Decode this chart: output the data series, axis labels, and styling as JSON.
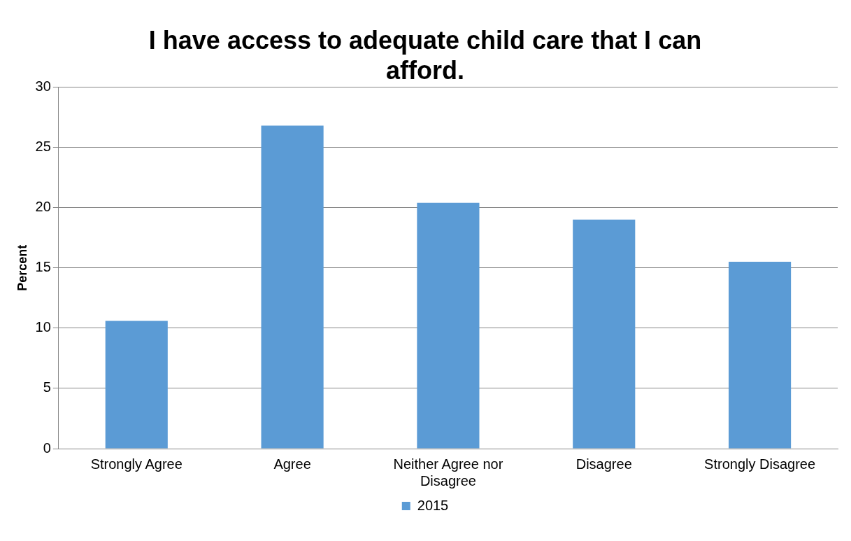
{
  "chart_data": {
    "type": "bar",
    "title": "I have access to adequate child care that I can afford.",
    "ylabel": "Percent",
    "categories": [
      "Strongly Agree",
      "Agree",
      "Neither Agree nor Disagree",
      "Disagree",
      "Strongly Disagree"
    ],
    "series": [
      {
        "name": "2015",
        "color": "#5b9bd5",
        "values": [
          10.6,
          26.8,
          20.4,
          19.0,
          15.5
        ]
      }
    ],
    "ylim": [
      0,
      30
    ],
    "yticks": [
      0,
      5,
      10,
      15,
      20,
      25,
      30
    ],
    "grid": "y",
    "legend": "bottom"
  }
}
